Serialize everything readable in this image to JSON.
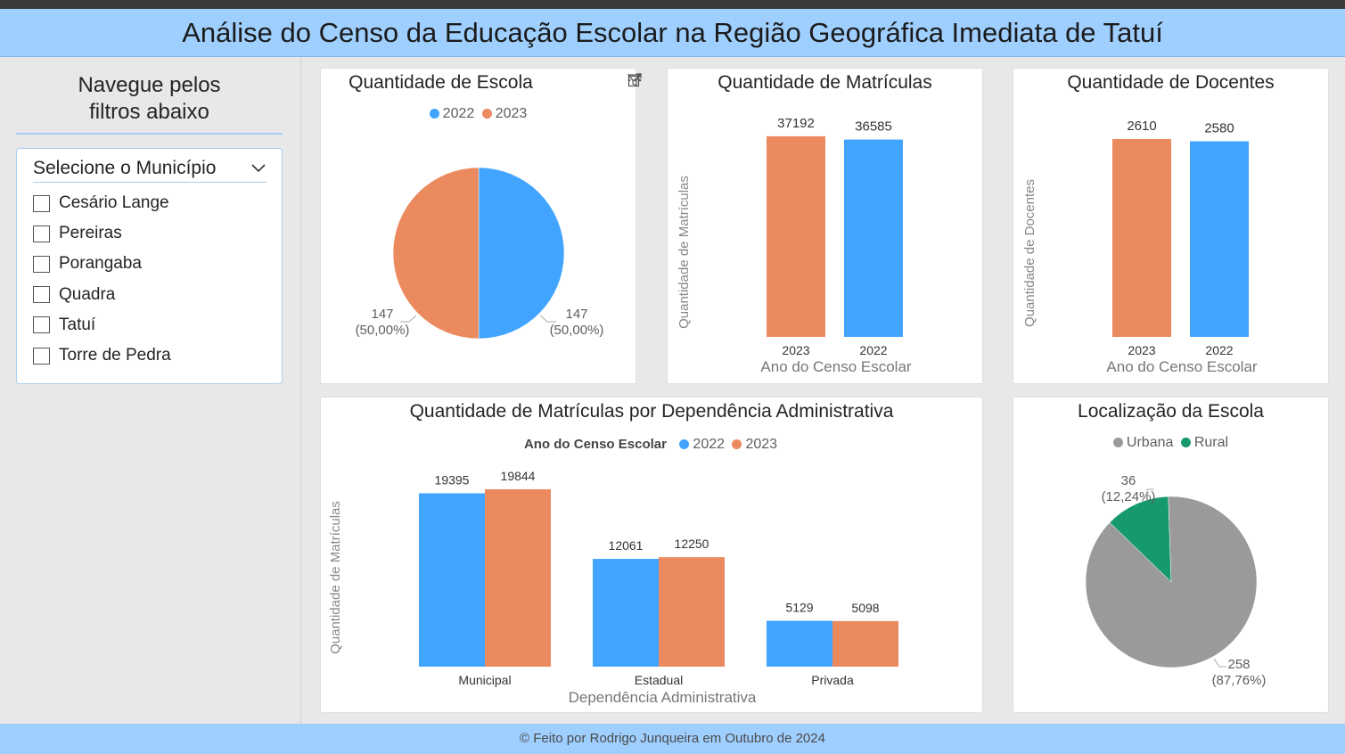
{
  "header": {
    "title": "Análise do Censo da Educação Escolar na Região Geográfica Imediata de Tatuí"
  },
  "sidebar": {
    "nav_line1": "Navegue pelos",
    "nav_line2": "filtros abaixo",
    "slicer_title": "Selecione o Município",
    "municipios": [
      "Cesário Lange",
      "Pereiras",
      "Porangaba",
      "Quadra",
      "Tatuí",
      "Torre de Pedra"
    ]
  },
  "colors": {
    "y2022": "#41a4ff",
    "y2023": "#eb895f",
    "urbana": "#9a9a9a",
    "rural": "#16996b",
    "axis_text": "#605e5c"
  },
  "chart_data": [
    {
      "id": "escolas",
      "type": "pie",
      "title": "Quantidade de Escolas",
      "title_visible": "Quantidade de Escola",
      "legend": [
        {
          "name": "2022",
          "color": "#41a4ff"
        },
        {
          "name": "2023",
          "color": "#eb895f"
        }
      ],
      "slices": [
        {
          "name": "2022",
          "value": 147,
          "percent": "50,00%",
          "color": "#41a4ff"
        },
        {
          "name": "2023",
          "value": 147,
          "percent": "50,00%",
          "color": "#eb895f"
        }
      ]
    },
    {
      "id": "matriculas",
      "type": "bar",
      "title": "Quantidade de Matrículas",
      "xlabel": "Ano do Censo Escolar",
      "ylabel": "Quantidade de Matrículas",
      "categories": [
        "2023",
        "2022"
      ],
      "values": [
        37192,
        36585
      ],
      "labels": [
        "37192",
        "36585"
      ],
      "colors": [
        "#eb895f",
        "#41a4ff"
      ],
      "ylim": [
        0,
        38000
      ]
    },
    {
      "id": "docentes",
      "type": "bar",
      "title": "Quantidade de Docentes",
      "xlabel": "Ano do Censo Escolar",
      "ylabel": "Quantidade de Docentes",
      "categories": [
        "2023",
        "2022"
      ],
      "values": [
        2610,
        2580
      ],
      "labels": [
        "2610",
        "2580"
      ],
      "colors": [
        "#eb895f",
        "#41a4ff"
      ],
      "ylim": [
        0,
        2680
      ]
    },
    {
      "id": "dependencia",
      "type": "bar",
      "title": "Quantidade de Matrículas por Dependência Administrativa",
      "legend_title": "Ano do Censo Escolar",
      "xlabel": "Dependência Administrativa",
      "ylabel": "Quantidade de Matrículas",
      "categories": [
        "Municipal",
        "Estadual",
        "Privada"
      ],
      "series": [
        {
          "name": "2022",
          "color": "#41a4ff",
          "values": [
            19395,
            12061,
            5129
          ],
          "labels": [
            "19395",
            "12061",
            "5129"
          ]
        },
        {
          "name": "2023",
          "color": "#eb895f",
          "values": [
            19844,
            12250,
            5098
          ],
          "labels": [
            "19844",
            "12250",
            "5098"
          ]
        }
      ],
      "ylim": [
        0,
        19844
      ]
    },
    {
      "id": "localizacao",
      "type": "pie",
      "title": "Localização da Escola",
      "legend": [
        {
          "name": "Urbana",
          "color": "#9a9a9a"
        },
        {
          "name": "Rural",
          "color": "#16996b"
        }
      ],
      "slices": [
        {
          "name": "Rural",
          "value": 36,
          "percent": "12,24%",
          "color": "#16996b"
        },
        {
          "name": "Urbana",
          "value": 258,
          "percent": "87,76%",
          "color": "#9a9a9a"
        }
      ]
    }
  ],
  "footer": {
    "text": "© Feito por Rodrigo Junqueira em Outubro de 2024"
  }
}
